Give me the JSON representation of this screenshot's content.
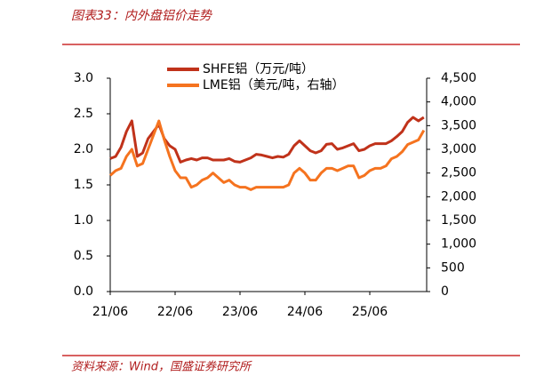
{
  "chart_data": {
    "type": "line",
    "title": "图表33：内外盘铝价走势",
    "source": "资料来源：Wind，国盛证券研究所",
    "categories": [
      "21/06",
      null,
      null,
      null,
      null,
      null,
      null,
      null,
      null,
      null,
      null,
      null,
      "22/06",
      null,
      null,
      null,
      null,
      null,
      null,
      null,
      null,
      null,
      null,
      null,
      "23/06",
      null,
      null,
      null,
      null,
      null,
      null,
      null,
      null,
      null,
      null,
      null,
      "24/06",
      null,
      null,
      null,
      null,
      null,
      null,
      null,
      null,
      null,
      null,
      null,
      "25/06",
      null,
      null,
      null,
      null,
      null,
      null,
      null,
      null,
      null,
      null
    ],
    "series": [
      {
        "name": "SHFE铝（万元/吨）",
        "color": "#c0321a",
        "axis": "y",
        "values": [
          1.87,
          1.9,
          2.03,
          2.25,
          2.4,
          1.9,
          1.95,
          2.15,
          2.25,
          2.35,
          2.15,
          2.05,
          2.0,
          1.82,
          1.85,
          1.87,
          1.85,
          1.88,
          1.88,
          1.85,
          1.85,
          1.85,
          1.87,
          1.83,
          1.82,
          1.85,
          1.88,
          1.93,
          1.92,
          1.9,
          1.88,
          1.9,
          1.89,
          1.93,
          2.05,
          2.12,
          2.05,
          1.98,
          1.95,
          1.98,
          2.07,
          2.08,
          2.0,
          2.02,
          2.05,
          2.08,
          1.98,
          2.0,
          2.05,
          2.08,
          2.08,
          2.08,
          2.12,
          2.18,
          2.25,
          2.38,
          2.45,
          2.4,
          2.45
        ]
      },
      {
        "name": "LME铝（美元/吨，右轴）",
        "color": "#f5731f",
        "axis": "y2",
        "values": [
          2450,
          2550,
          2600,
          2850,
          3000,
          2650,
          2700,
          3000,
          3300,
          3600,
          3200,
          2850,
          2550,
          2400,
          2400,
          2200,
          2250,
          2350,
          2400,
          2500,
          2400,
          2300,
          2350,
          2250,
          2200,
          2200,
          2150,
          2200,
          2200,
          2200,
          2200,
          2200,
          2200,
          2250,
          2500,
          2600,
          2500,
          2350,
          2350,
          2500,
          2600,
          2600,
          2550,
          2600,
          2650,
          2650,
          2400,
          2450,
          2550,
          2600,
          2600,
          2650,
          2800,
          2850,
          2950,
          3100,
          3150,
          3200,
          3400
        ]
      }
    ],
    "ylim": [
      0,
      3
    ],
    "yticks": [
      {
        "value": 0,
        "label": "0.0"
      },
      0.5,
      {
        "value": 1,
        "label": "1.0"
      },
      1.5,
      {
        "value": 2,
        "label": "2.0"
      },
      2.5,
      {
        "value": 3,
        "label": "3.0"
      }
    ],
    "y2lim": [
      0,
      4500
    ],
    "y2ticks": [
      0,
      500,
      {
        "value": 1000,
        "label": "1,000"
      },
      {
        "value": 1500,
        "label": "1,500"
      },
      {
        "value": 2000,
        "label": "2,000"
      },
      {
        "value": 2500,
        "label": "2,500"
      },
      {
        "value": 3000,
        "label": "3,000"
      },
      {
        "value": 3500,
        "label": "3,500"
      },
      {
        "value": 4000,
        "label": "4,000"
      },
      {
        "value": 4500,
        "label": "4,500"
      }
    ]
  }
}
